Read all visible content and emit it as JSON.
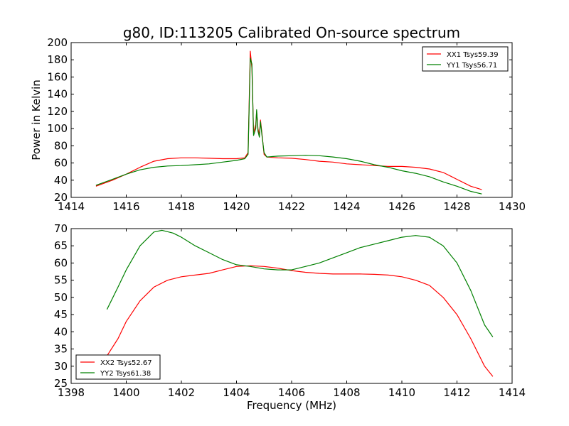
{
  "figure": {
    "title": "g80, ID:113205 Calibrated On-source spectrum"
  },
  "chart_data": [
    {
      "type": "line",
      "title": "g80, ID:113205 Calibrated On-source spectrum",
      "xlabel": "",
      "ylabel": "Power in Kelvin",
      "xlim": [
        1414,
        1430
      ],
      "ylim": [
        20,
        200
      ],
      "xticks": [
        "1414",
        "1416",
        "1418",
        "1420",
        "1422",
        "1424",
        "1426",
        "1428",
        "1430"
      ],
      "yticks": [
        "20",
        "40",
        "60",
        "80",
        "100",
        "120",
        "140",
        "160",
        "180",
        "200"
      ],
      "grid": false,
      "legend": "top-right",
      "series": [
        {
          "name": "XX1 Tsys59.39",
          "color": "#ff0000",
          "points": [
            [
              1414.9,
              33
            ],
            [
              1415.5,
              40
            ],
            [
              1416,
              47
            ],
            [
              1416.5,
              55
            ],
            [
              1417,
              62
            ],
            [
              1417.5,
              65
            ],
            [
              1418,
              66
            ],
            [
              1418.5,
              66
            ],
            [
              1419,
              65.5
            ],
            [
              1419.5,
              65
            ],
            [
              1420,
              65
            ],
            [
              1420.3,
              66
            ],
            [
              1420.42,
              72
            ],
            [
              1420.5,
              190
            ],
            [
              1420.56,
              170
            ],
            [
              1420.62,
              95
            ],
            [
              1420.7,
              105
            ],
            [
              1420.73,
              120
            ],
            [
              1420.78,
              100
            ],
            [
              1420.83,
              92
            ],
            [
              1420.87,
              110
            ],
            [
              1420.92,
              95
            ],
            [
              1421,
              70
            ],
            [
              1421.1,
              67
            ],
            [
              1421.5,
              66
            ],
            [
              1422,
              65.5
            ],
            [
              1422.5,
              64
            ],
            [
              1423,
              62
            ],
            [
              1423.5,
              61
            ],
            [
              1424,
              59
            ],
            [
              1424.5,
              58
            ],
            [
              1425,
              57
            ],
            [
              1425.5,
              56
            ],
            [
              1426,
              56
            ],
            [
              1426.5,
              55
            ],
            [
              1427,
              53
            ],
            [
              1427.5,
              49
            ],
            [
              1428,
              41
            ],
            [
              1428.5,
              33
            ],
            [
              1428.9,
              29
            ]
          ]
        },
        {
          "name": "YY1 Tsys56.71",
          "color": "#008000",
          "points": [
            [
              1414.9,
              34
            ],
            [
              1415.5,
              41
            ],
            [
              1416,
              47
            ],
            [
              1416.5,
              52
            ],
            [
              1417,
              55
            ],
            [
              1417.5,
              56.5
            ],
            [
              1418,
              57
            ],
            [
              1418.5,
              58
            ],
            [
              1419,
              59
            ],
            [
              1419.5,
              61
            ],
            [
              1420,
              63
            ],
            [
              1420.3,
              65
            ],
            [
              1420.42,
              70
            ],
            [
              1420.5,
              182
            ],
            [
              1420.56,
              175
            ],
            [
              1420.62,
              92
            ],
            [
              1420.7,
              100
            ],
            [
              1420.73,
              122
            ],
            [
              1420.78,
              97
            ],
            [
              1420.83,
              90
            ],
            [
              1420.87,
              108
            ],
            [
              1420.92,
              93
            ],
            [
              1421,
              72
            ],
            [
              1421.1,
              67
            ],
            [
              1421.5,
              68
            ],
            [
              1422,
              68.5
            ],
            [
              1422.5,
              69
            ],
            [
              1423,
              68.5
            ],
            [
              1423.5,
              67
            ],
            [
              1424,
              65
            ],
            [
              1424.5,
              62
            ],
            [
              1425,
              58
            ],
            [
              1425.5,
              55
            ],
            [
              1426,
              51
            ],
            [
              1426.5,
              48
            ],
            [
              1427,
              44
            ],
            [
              1427.5,
              38
            ],
            [
              1428,
              33
            ],
            [
              1428.5,
              27
            ],
            [
              1428.9,
              24
            ]
          ]
        }
      ]
    },
    {
      "type": "line",
      "title": "",
      "xlabel": "Frequency (MHz)",
      "ylabel": "",
      "xlim": [
        1398,
        1414
      ],
      "ylim": [
        25,
        70
      ],
      "xticks": [
        "1398",
        "1400",
        "1402",
        "1404",
        "1406",
        "1408",
        "1410",
        "1412",
        "1414"
      ],
      "yticks": [
        "25",
        "30",
        "35",
        "40",
        "45",
        "50",
        "55",
        "60",
        "65",
        "70"
      ],
      "grid": false,
      "legend": "bottom-left",
      "series": [
        {
          "name": "XX2 Tsys52.67",
          "color": "#ff0000",
          "points": [
            [
              1399.3,
              33
            ],
            [
              1399.7,
              38
            ],
            [
              1400,
              43
            ],
            [
              1400.5,
              49
            ],
            [
              1401,
              53
            ],
            [
              1401.5,
              55
            ],
            [
              1402,
              56
            ],
            [
              1402.5,
              56.5
            ],
            [
              1403,
              57
            ],
            [
              1403.5,
              58
            ],
            [
              1404,
              59
            ],
            [
              1404.5,
              59.2
            ],
            [
              1405,
              59
            ],
            [
              1405.5,
              58.5
            ],
            [
              1406,
              57.8
            ],
            [
              1406.5,
              57.3
            ],
            [
              1407,
              57
            ],
            [
              1407.5,
              56.8
            ],
            [
              1408,
              56.8
            ],
            [
              1408.5,
              56.8
            ],
            [
              1409,
              56.7
            ],
            [
              1409.5,
              56.5
            ],
            [
              1410,
              56
            ],
            [
              1410.5,
              55
            ],
            [
              1411,
              53.5
            ],
            [
              1411.5,
              50
            ],
            [
              1412,
              45
            ],
            [
              1412.5,
              38
            ],
            [
              1413,
              30
            ],
            [
              1413.3,
              27
            ]
          ]
        },
        {
          "name": "YY2 Tsys61.38",
          "color": "#008000",
          "points": [
            [
              1399.3,
              46.5
            ],
            [
              1399.7,
              53
            ],
            [
              1400,
              58
            ],
            [
              1400.5,
              65
            ],
            [
              1401,
              69
            ],
            [
              1401.3,
              69.5
            ],
            [
              1401.7,
              68.7
            ],
            [
              1402,
              67.5
            ],
            [
              1402.5,
              65
            ],
            [
              1403,
              63
            ],
            [
              1403.5,
              61
            ],
            [
              1404,
              59.5
            ],
            [
              1404.5,
              59
            ],
            [
              1405,
              58.3
            ],
            [
              1405.5,
              58
            ],
            [
              1406,
              58
            ],
            [
              1406.5,
              59
            ],
            [
              1407,
              60
            ],
            [
              1407.5,
              61.5
            ],
            [
              1408,
              63
            ],
            [
              1408.5,
              64.5
            ],
            [
              1409,
              65.5
            ],
            [
              1409.5,
              66.5
            ],
            [
              1410,
              67.5
            ],
            [
              1410.5,
              68
            ],
            [
              1411,
              67.5
            ],
            [
              1411.5,
              65
            ],
            [
              1412,
              60
            ],
            [
              1412.5,
              52
            ],
            [
              1413,
              42
            ],
            [
              1413.3,
              38.5
            ]
          ]
        }
      ]
    }
  ]
}
